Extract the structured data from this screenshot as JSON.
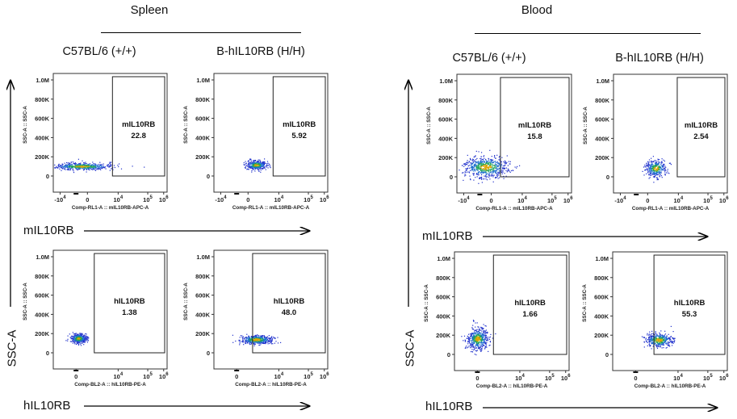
{
  "sections": [
    {
      "title": "Spleen",
      "strains": [
        "C57BL/6 (+/+)",
        "B-hIL10RB (H/H)"
      ]
    },
    {
      "title": "Blood",
      "strains": [
        "C57BL/6 (+/+)",
        "B-hIL10RB (H/H)"
      ]
    }
  ],
  "axis_titles": {
    "side_y": "SSC-A",
    "m_arrow": "mIL10RB",
    "h_arrow": "hIL10RB"
  },
  "chart_data": [
    {
      "type": "scatter",
      "section": "Spleen",
      "strain": "C57BL/6 (+/+)",
      "gate_label": "mIL10RB",
      "gate_value": "22.8",
      "xlabel": "Comp-RL1-A :: mIL10RB-APC-A",
      "ylabel": "SSC-A :: SSC-A",
      "y_ticks": [
        "1.0M",
        "800K",
        "600K",
        "400K",
        "200K",
        "0"
      ],
      "x_ticks": [
        "-10^4",
        "0",
        "10^4",
        "10^5",
        "10^6"
      ],
      "ylim": [
        0,
        1000000
      ]
    },
    {
      "type": "scatter",
      "section": "Spleen",
      "strain": "B-hIL10RB (H/H)",
      "gate_label": "mIL10RB",
      "gate_value": "5.92",
      "xlabel": "Comp-RL1-A :: mIL10RB-APC-A",
      "ylabel": "SSC-A :: SSC-A",
      "y_ticks": [
        "1.0M",
        "800K",
        "600K",
        "400K",
        "200K",
        "0"
      ],
      "x_ticks": [
        "-10^4",
        "0",
        "10^4",
        "10^5",
        "10^6"
      ],
      "ylim": [
        0,
        1000000
      ]
    },
    {
      "type": "scatter",
      "section": "Blood",
      "strain": "C57BL/6 (+/+)",
      "gate_label": "mIL10RB",
      "gate_value": "15.8",
      "xlabel": "Comp-RL1-A :: mIL10RB-APC-A",
      "ylabel": "SSC-A :: SSC-A",
      "y_ticks": [
        "1.0M",
        "800K",
        "600K",
        "400K",
        "200K",
        "0"
      ],
      "x_ticks": [
        "-10^4",
        "0",
        "10^4",
        "10^5",
        "10^6"
      ],
      "ylim": [
        0,
        1000000
      ]
    },
    {
      "type": "scatter",
      "section": "Blood",
      "strain": "B-hIL10RB (H/H)",
      "gate_label": "mIL10RB",
      "gate_value": "2.54",
      "xlabel": "Comp-RL1-A :: mIL10RB-APC-A",
      "ylabel": "SSC-A :: SSC-A",
      "y_ticks": [
        "1.0M",
        "800K",
        "600K",
        "400K",
        "200K",
        "0"
      ],
      "x_ticks": [
        "-10^4",
        "0",
        "10^4",
        "10^5",
        "10^6"
      ],
      "ylim": [
        0,
        1000000
      ]
    },
    {
      "type": "scatter",
      "section": "Spleen",
      "strain": "C57BL/6 (+/+)",
      "gate_label": "hIL10RB",
      "gate_value": "1.38",
      "xlabel": "Comp-BL2-A :: hIL10RB-PE-A",
      "ylabel": "SSC-A :: SSC-A",
      "y_ticks": [
        "1.0M",
        "800K",
        "600K",
        "400K",
        "200K",
        "0"
      ],
      "x_ticks": [
        "0",
        "10^4",
        "10^5",
        "10^6"
      ],
      "ylim": [
        0,
        1000000
      ]
    },
    {
      "type": "scatter",
      "section": "Spleen",
      "strain": "B-hIL10RB (H/H)",
      "gate_label": "hIL10RB",
      "gate_value": "48.0",
      "xlabel": "Comp-BL2-A :: hIL10RB-PE-A",
      "ylabel": "SSC-A :: SSC-A",
      "y_ticks": [
        "1.0M",
        "800K",
        "600K",
        "400K",
        "200K",
        "0"
      ],
      "x_ticks": [
        "0",
        "10^4",
        "10^5",
        "10^6"
      ],
      "ylim": [
        0,
        1000000
      ]
    },
    {
      "type": "scatter",
      "section": "Blood",
      "strain": "C57BL/6 (+/+)",
      "gate_label": "hIL10RB",
      "gate_value": "1.66",
      "xlabel": "Comp-BL2-A :: hIL10RB-PE-A",
      "ylabel": "SSC-A :: SSC-A",
      "y_ticks": [
        "1.0M",
        "800K",
        "600K",
        "400K",
        "200K",
        "0"
      ],
      "x_ticks": [
        "0",
        "10^4",
        "10^5",
        "10^6"
      ],
      "ylim": [
        0,
        1000000
      ]
    },
    {
      "type": "scatter",
      "section": "Blood",
      "strain": "B-hIL10RB (H/H)",
      "gate_label": "hIL10RB",
      "gate_value": "55.3",
      "xlabel": "Comp-BL2-A :: hIL10RB-PE-A",
      "ylabel": "SSC-A :: SSC-A",
      "y_ticks": [
        "1.0M",
        "800K",
        "600K",
        "400K",
        "200K",
        "0"
      ],
      "x_ticks": [
        "0",
        "10^4",
        "10^5",
        "10^6"
      ],
      "ylim": [
        0,
        1000000
      ]
    }
  ]
}
